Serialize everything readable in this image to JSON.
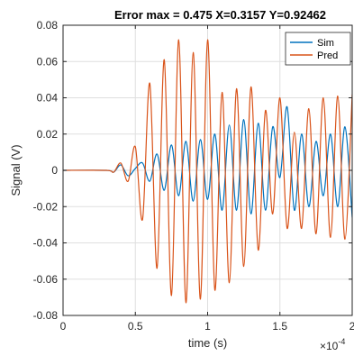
{
  "chart_data": {
    "type": "line",
    "title": "Error max = 0.475 X=0.3157  Y=0.92462",
    "xlabel": "time (s)",
    "ylabel": "Signal (V)",
    "x_exponent_label": "×10",
    "x_exponent_power": "-4",
    "xlim": [
      0,
      2
    ],
    "ylim": [
      -0.08,
      0.08
    ],
    "x_ticks": [
      0,
      0.5,
      1,
      1.5,
      2
    ],
    "x_tick_labels": [
      "0",
      "0.5",
      "1",
      "1.5",
      "2"
    ],
    "y_ticks": [
      -0.08,
      -0.06,
      -0.04,
      -0.02,
      0,
      0.02,
      0.04,
      0.06,
      0.08
    ],
    "y_tick_labels": [
      "-0.08",
      "-0.06",
      "-0.04",
      "-0.02",
      "0",
      "0.02",
      "0.04",
      "0.06",
      "0.08"
    ],
    "grid": true,
    "legend_position": "top-right",
    "colors": {
      "Sim": "#0072bd",
      "Pred": "#d95319"
    },
    "series": [
      {
        "name": "Sim",
        "color": "#0072bd",
        "x": [
          0,
          0.3,
          0.35,
          0.4,
          0.45,
          0.5,
          0.55,
          0.6,
          0.65,
          0.7,
          0.75,
          0.8,
          0.85,
          0.9,
          0.95,
          1.0,
          1.05,
          1.1,
          1.15,
          1.2,
          1.25,
          1.3,
          1.35,
          1.4,
          1.45,
          1.5,
          1.55,
          1.6,
          1.65,
          1.7,
          1.75,
          1.8,
          1.85,
          1.9,
          1.95,
          2.0
        ],
        "y": [
          0,
          0,
          -0.001,
          0.003,
          -0.003,
          0.001,
          0.004,
          -0.006,
          0.009,
          -0.011,
          0.014,
          -0.014,
          0.016,
          -0.017,
          0.017,
          -0.016,
          0.02,
          -0.022,
          0.025,
          -0.022,
          0.028,
          -0.024,
          0.026,
          -0.022,
          0.024,
          -0.004,
          0.035,
          -0.022,
          0.02,
          -0.02,
          0.016,
          -0.014,
          0.02,
          -0.02,
          0.024,
          -0.026
        ]
      },
      {
        "name": "Pred",
        "color": "#d95319",
        "x": [
          0,
          0.3,
          0.35,
          0.4,
          0.45,
          0.5,
          0.55,
          0.6,
          0.65,
          0.7,
          0.75,
          0.8,
          0.85,
          0.9,
          0.95,
          1.0,
          1.05,
          1.1,
          1.15,
          1.2,
          1.25,
          1.3,
          1.35,
          1.4,
          1.45,
          1.5,
          1.55,
          1.6,
          1.65,
          1.7,
          1.75,
          1.8,
          1.85,
          1.9,
          1.95,
          2.0
        ],
        "y": [
          0,
          0,
          -0.001,
          0.004,
          -0.006,
          0.013,
          -0.027,
          0.048,
          -0.054,
          0.061,
          -0.069,
          0.072,
          -0.073,
          0.065,
          -0.071,
          0.072,
          -0.066,
          0.043,
          -0.062,
          0.045,
          -0.053,
          0.046,
          -0.044,
          0.033,
          -0.024,
          0.04,
          -0.032,
          0.021,
          -0.032,
          0.034,
          -0.035,
          0.04,
          -0.037,
          0.041,
          -0.038,
          0.042
        ]
      }
    ]
  }
}
